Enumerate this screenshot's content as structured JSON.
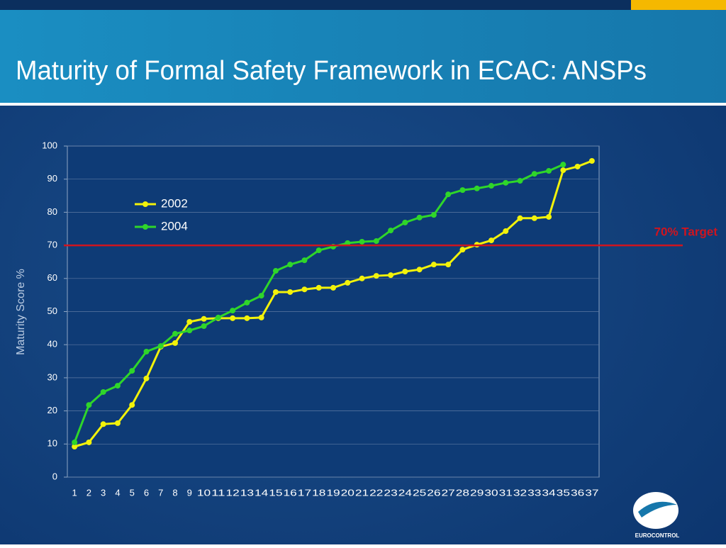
{
  "title": "Maturity of Formal Safety Framework in ECAC:  ANSPs",
  "logo_text": "EUROCONTROL",
  "chart_data": {
    "type": "line",
    "ylabel": "Maturity Score %",
    "categories": [
      "1",
      "2",
      "3",
      "4",
      "5",
      "6",
      "7",
      "8",
      "9",
      "10",
      "11",
      "12",
      "13",
      "14",
      "15",
      "16",
      "17",
      "18",
      "19",
      "20",
      "21",
      "22",
      "23",
      "24",
      "25",
      "26",
      "27",
      "28",
      "29",
      "30",
      "31",
      "32",
      "33",
      "34",
      "35",
      "36",
      "37"
    ],
    "series": [
      {
        "name": "2002",
        "color": "#f2f20a",
        "values": [
          9.2,
          10.5,
          16,
          16.3,
          21.8,
          29.8,
          39.4,
          40.5,
          46.9,
          47.8,
          48,
          48,
          48,
          48.2,
          55.9,
          55.9,
          56.7,
          57.2,
          57.2,
          58.7,
          60,
          60.8,
          61,
          62.1,
          62.7,
          64.2,
          64.2,
          68.7,
          70.2,
          71.5,
          74.3,
          78.2,
          78.2,
          78.6,
          92.7,
          93.8,
          95.5
        ]
      },
      {
        "name": "2004",
        "color": "#2fd62a",
        "values": [
          10.5,
          21.8,
          25.7,
          27.6,
          32.1,
          37.9,
          39.6,
          43.3,
          44.3,
          45.6,
          48.2,
          50.3,
          52.7,
          54.8,
          62.3,
          64.2,
          65.5,
          68.5,
          69.6,
          70.7,
          71.1,
          71.3,
          74.5,
          76.9,
          78.4,
          79.2,
          85.4,
          86.7,
          87.2,
          88,
          88.9,
          89.5,
          91.6,
          92.5,
          94.4,
          null,
          null
        ]
      }
    ],
    "ylim": [
      0,
      100
    ],
    "yticks": [
      0,
      10,
      20,
      30,
      40,
      50,
      60,
      70,
      80,
      90,
      100
    ],
    "grid": true,
    "legend": "upper left",
    "target": {
      "value": 70,
      "label": "70% Target",
      "color": "#d0141e"
    }
  }
}
